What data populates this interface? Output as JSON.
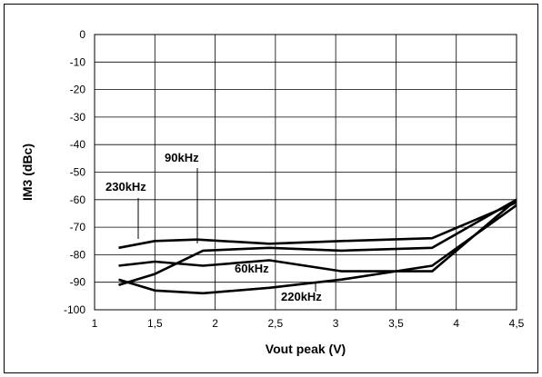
{
  "chart_data": {
    "type": "line",
    "xlabel": "Vout peak (V)",
    "ylabel": "IM3  (dBc)",
    "xlim": [
      1,
      4.5
    ],
    "ylim": [
      -100,
      0
    ],
    "x_tick_labels": [
      "1",
      "1,5",
      "2",
      "2,5",
      "3",
      "3,5",
      "4",
      "4,5"
    ],
    "y_tick_labels": [
      "0",
      "-10",
      "-20",
      "-30",
      "-40",
      "-50",
      "-60",
      "-70",
      "-80",
      "-90",
      "-100"
    ],
    "grid": true,
    "series": [
      {
        "name": "230kHz",
        "x": [
          1.2,
          1.5,
          1.85,
          2.45,
          3.05,
          3.8,
          4.5
        ],
        "y": [
          -77.5,
          -75,
          -74.5,
          -76,
          -75,
          -74,
          -61
        ]
      },
      {
        "name": "90kHz",
        "x": [
          1.2,
          1.5,
          1.9,
          2.45,
          3.05,
          3.8,
          4.5
        ],
        "y": [
          -91,
          -87,
          -78.5,
          -77.5,
          -78.5,
          -77.5,
          -60
        ]
      },
      {
        "name": "60kHz",
        "x": [
          1.2,
          1.5,
          1.9,
          2.45,
          3.05,
          3.8,
          4.5
        ],
        "y": [
          -84,
          -82.5,
          -84,
          -82,
          -86,
          -86,
          -60
        ]
      },
      {
        "name": "220kHz",
        "x": [
          1.2,
          1.5,
          1.9,
          2.45,
          3.05,
          3.8,
          4.5
        ],
        "y": [
          -89,
          -93,
          -94,
          -92,
          -89,
          -84,
          -62
        ]
      }
    ],
    "annotations": [
      {
        "text": "230kHz",
        "series": "230kHz"
      },
      {
        "text": "90kHz",
        "series": "90kHz"
      },
      {
        "text": "60kHz",
        "series": "60kHz"
      },
      {
        "text": "220kHz",
        "series": "220kHz"
      }
    ]
  }
}
